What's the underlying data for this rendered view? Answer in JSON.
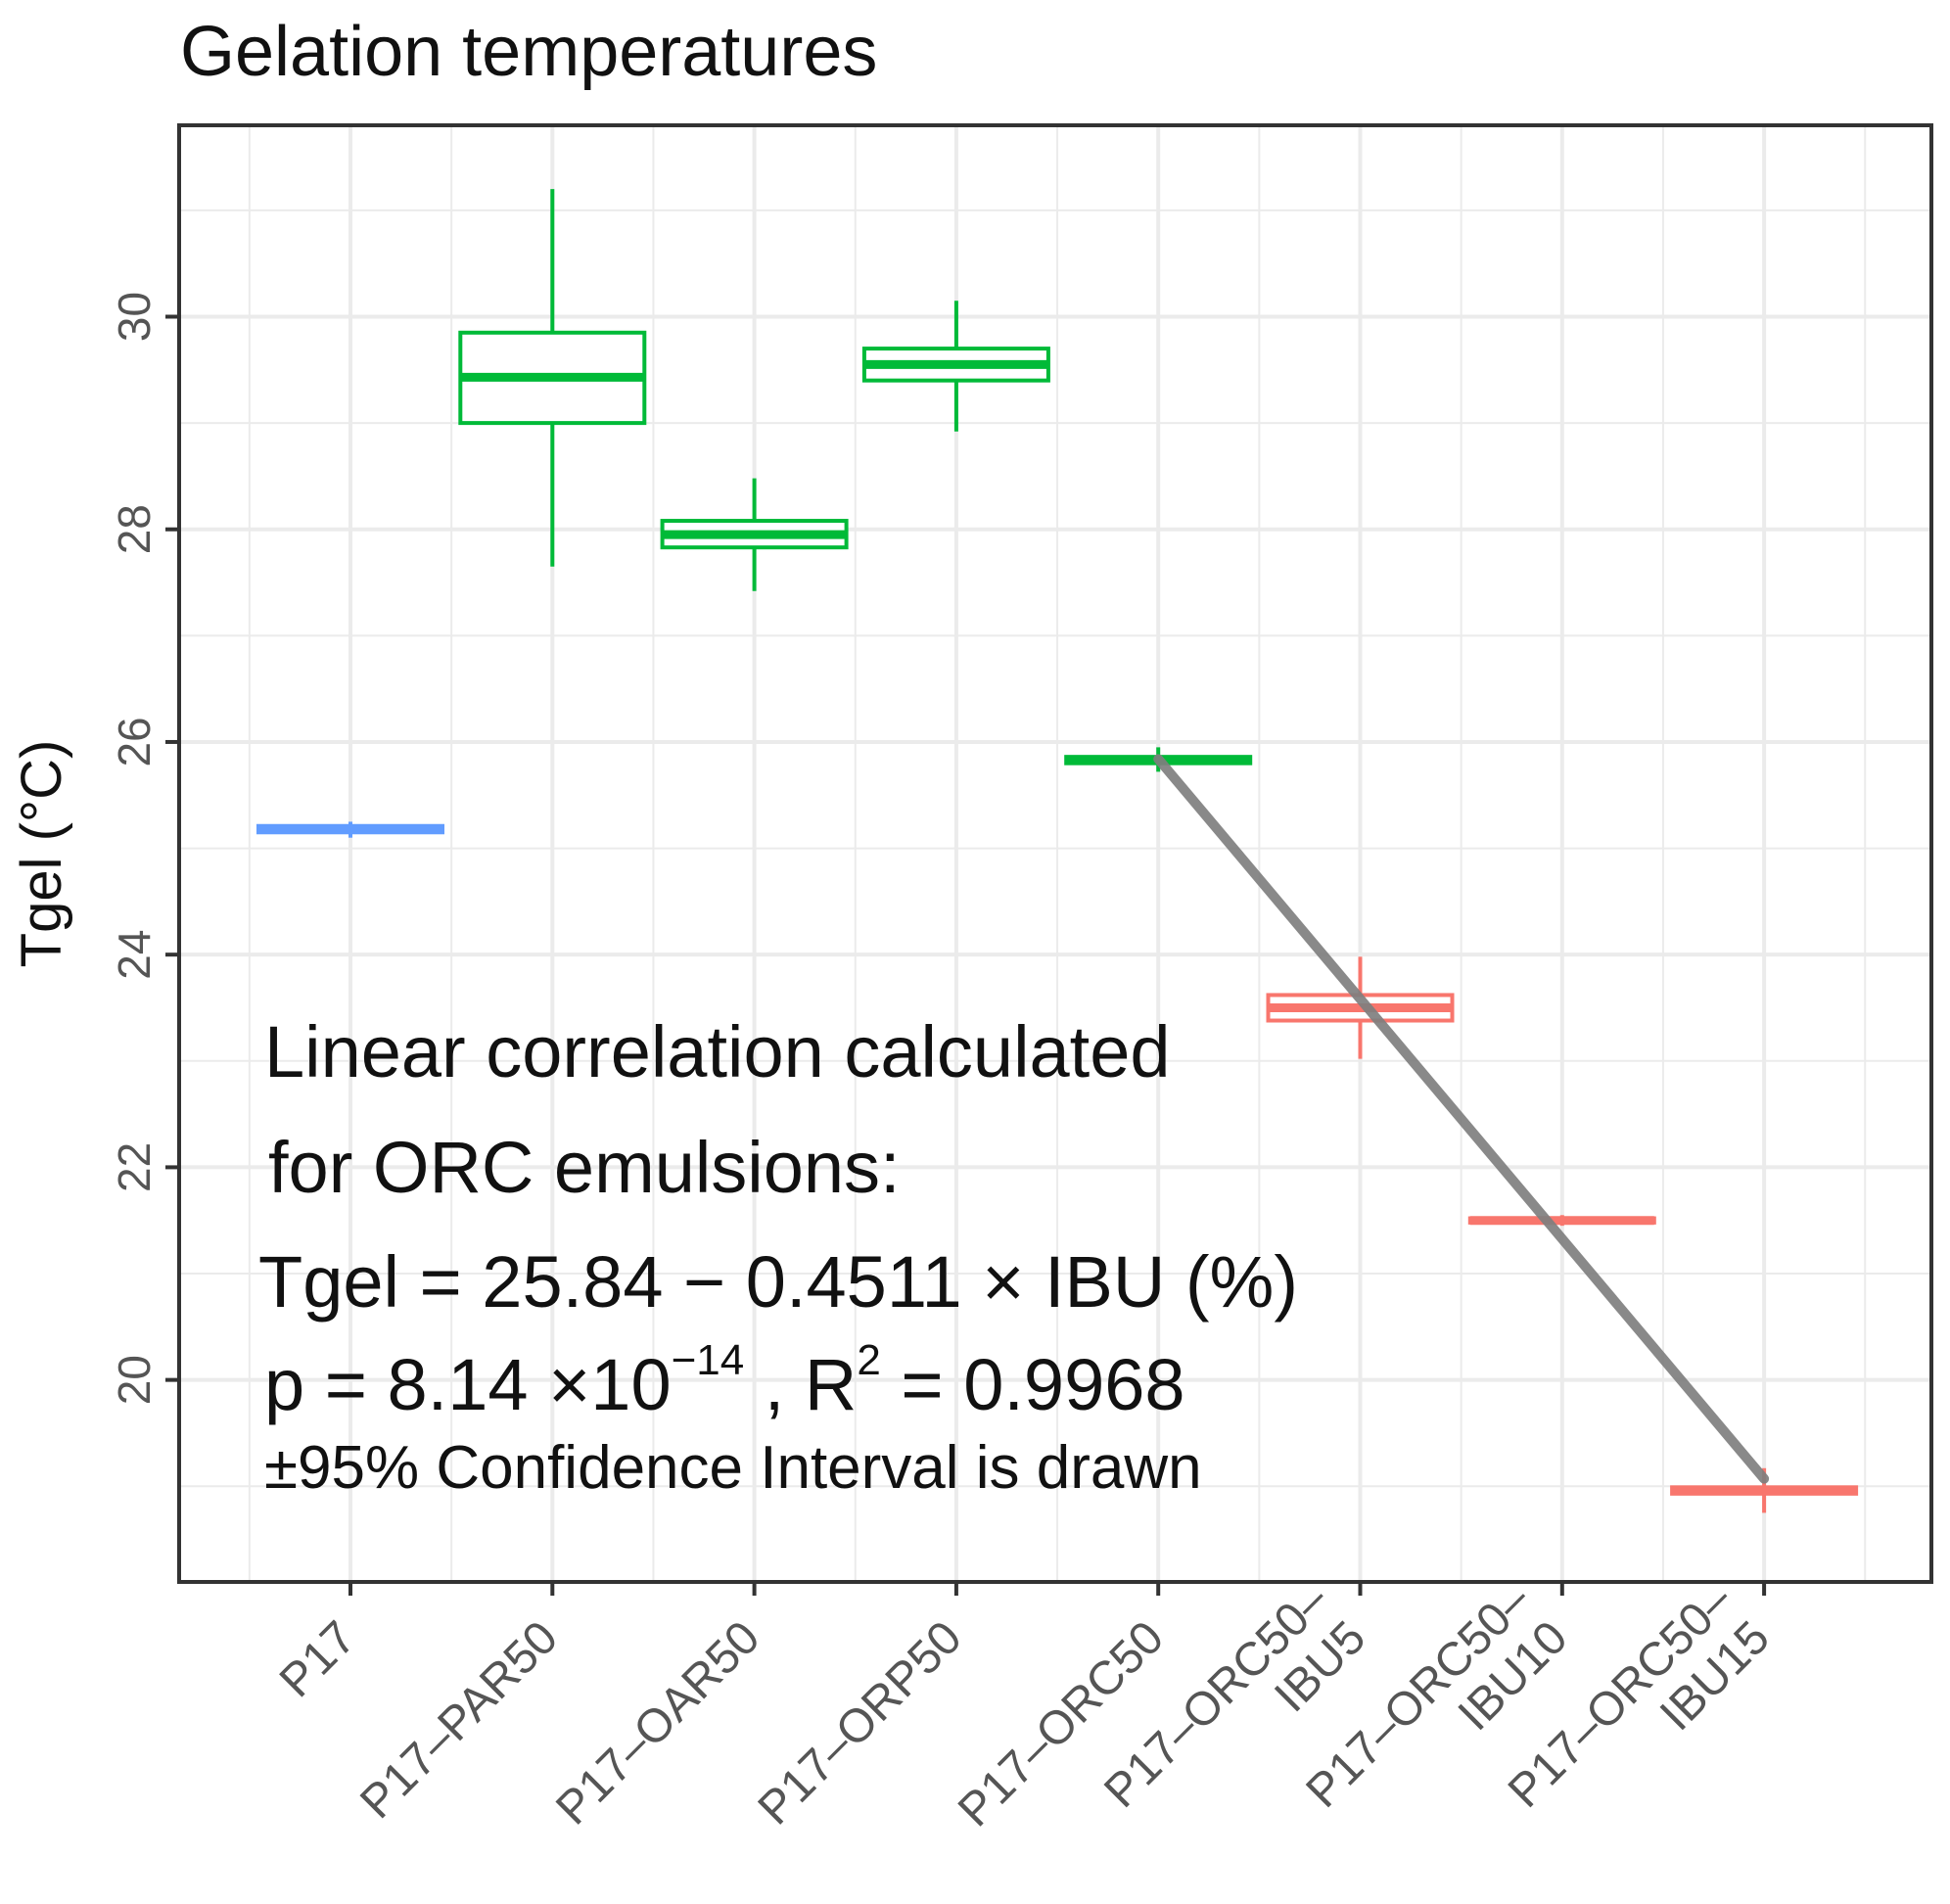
{
  "chart_data": {
    "type": "box",
    "title": "Gelation temperatures",
    "xlabel": "",
    "ylabel": "Tgel (°C)",
    "ylim": [
      18.1,
      31.8
    ],
    "yticks": [
      20,
      22,
      24,
      26,
      28,
      30
    ],
    "grid": true,
    "legend": "none",
    "categories": [
      {
        "label": [
          "P17"
        ],
        "color": "#619CFF",
        "q1": 25.15,
        "median": 25.18,
        "q3": 25.21,
        "wmin": 25.1,
        "wmax": 25.25
      },
      {
        "label": [
          "P17–PAR50"
        ],
        "color": "#00BA38",
        "q1": 29.0,
        "median": 29.43,
        "q3": 29.85,
        "wmin": 27.65,
        "wmax": 31.2
      },
      {
        "label": [
          "P17–OAR50"
        ],
        "color": "#00BA38",
        "q1": 27.83,
        "median": 27.95,
        "q3": 28.08,
        "wmin": 27.42,
        "wmax": 28.48
      },
      {
        "label": [
          "P17–ORP50"
        ],
        "color": "#00BA38",
        "q1": 29.4,
        "median": 29.55,
        "q3": 29.7,
        "wmin": 28.92,
        "wmax": 30.15
      },
      {
        "label": [
          "P17–ORC50"
        ],
        "color": "#00BA38",
        "q1": 25.8,
        "median": 25.83,
        "q3": 25.86,
        "wmin": 25.72,
        "wmax": 25.95
      },
      {
        "label": [
          "P17–ORC50–",
          "IBU5"
        ],
        "color": "#F8766D",
        "q1": 23.38,
        "median": 23.5,
        "q3": 23.62,
        "wmin": 23.02,
        "wmax": 23.98
      },
      {
        "label": [
          "P17–ORC50–",
          "IBU10"
        ],
        "color": "#F8766D",
        "q1": 21.48,
        "median": 21.5,
        "q3": 21.52,
        "wmin": 21.45,
        "wmax": 21.55
      },
      {
        "label": [
          "P17–ORC50–",
          "IBU15"
        ],
        "color": "#F8766D",
        "q1": 18.93,
        "median": 18.96,
        "q3": 18.99,
        "wmin": 18.75,
        "wmax": 19.17
      }
    ],
    "regression": {
      "from_category": 4,
      "to_category": 7,
      "y_start": 25.84,
      "y_end": 19.07,
      "color": "#7f7f7f"
    },
    "annotation": {
      "line1": "Linear correlation calculated",
      "line2": "for ORC emulsions:",
      "line3": "Tgel = 25.84 − 0.4511 × IBU (%)",
      "line4_main": "p = 8.14 ×10",
      "line4_exp": "−14",
      "line4_mid": " , R",
      "line4_sup": "2",
      "line4_end": " = 0.9968",
      "line5": "±95% Confidence Interval is drawn"
    }
  }
}
